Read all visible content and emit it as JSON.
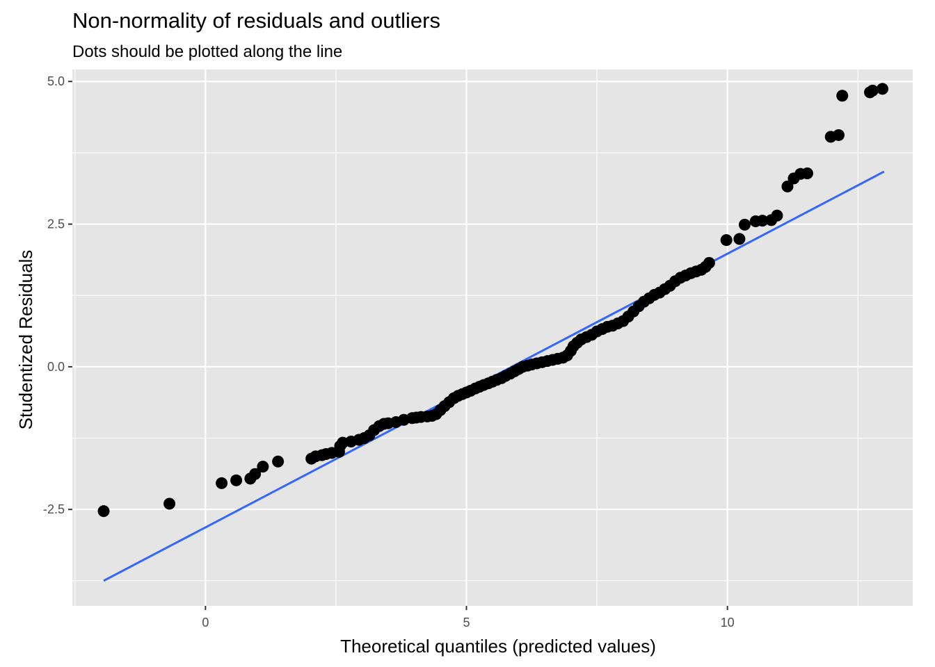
{
  "chart_data": {
    "type": "scatter",
    "title": "Non-normality of residuals and outliers",
    "subtitle": "Dots should be plotted along the line",
    "xlabel": "Theoretical quantiles (predicted values)",
    "ylabel": "Studentized Residuals",
    "xlim": [
      -2.55,
      13.55
    ],
    "ylim": [
      -4.19,
      5.21
    ],
    "x_ticks": [
      0,
      5,
      10
    ],
    "x_tick_labels": [
      "0",
      "5",
      "10"
    ],
    "y_ticks": [
      -2.5,
      0.0,
      2.5,
      5.0
    ],
    "y_tick_labels": [
      "-2.5",
      "0.0",
      "2.5",
      "5.0"
    ],
    "grid": true,
    "background": "#e5e5e5",
    "grid_color": "#ffffff",
    "point_color": "#000000",
    "line_color": "#3366ff",
    "reference_line": {
      "x": [
        -1.95,
        13.0
      ],
      "y": [
        -3.75,
        3.42
      ]
    },
    "points": {
      "x": [
        -1.95,
        -0.69,
        0.31,
        0.59,
        0.86,
        0.95,
        1.1,
        1.39,
        2.03,
        2.11,
        2.23,
        2.31,
        2.42,
        2.56,
        2.58,
        2.63,
        2.79,
        2.94,
        3.04,
        3.14,
        3.23,
        3.33,
        3.42,
        3.5,
        3.65,
        3.8,
        3.96,
        4.04,
        4.13,
        4.25,
        4.34,
        4.42,
        4.5,
        4.58,
        4.67,
        4.76,
        4.84,
        4.92,
        5.0,
        5.08,
        5.17,
        5.25,
        5.33,
        5.42,
        5.5,
        5.58,
        5.67,
        5.75,
        5.84,
        5.92,
        6.0,
        6.08,
        6.17,
        6.25,
        6.35,
        6.45,
        6.55,
        6.65,
        6.75,
        6.85,
        6.93,
        7.0,
        7.05,
        7.12,
        7.2,
        7.3,
        7.4,
        7.5,
        7.6,
        7.7,
        7.8,
        7.9,
        8.0,
        8.1,
        8.2,
        8.3,
        8.4,
        8.5,
        8.6,
        8.7,
        8.8,
        8.9,
        9.0,
        9.1,
        9.2,
        9.3,
        9.4,
        9.5,
        9.58,
        9.65,
        9.98,
        10.23,
        10.33,
        10.54,
        10.67,
        10.84,
        10.95,
        11.15,
        11.27,
        11.4,
        11.53,
        11.98,
        12.13,
        12.2,
        12.73,
        12.78,
        12.97
      ],
      "y": [
        -2.53,
        -2.4,
        -2.04,
        -1.99,
        -1.96,
        -1.88,
        -1.75,
        -1.66,
        -1.61,
        -1.57,
        -1.55,
        -1.53,
        -1.51,
        -1.49,
        -1.39,
        -1.33,
        -1.31,
        -1.28,
        -1.25,
        -1.2,
        -1.11,
        -1.04,
        -1.0,
        -0.99,
        -0.97,
        -0.93,
        -0.9,
        -0.89,
        -0.88,
        -0.87,
        -0.86,
        -0.83,
        -0.76,
        -0.69,
        -0.62,
        -0.55,
        -0.51,
        -0.48,
        -0.45,
        -0.42,
        -0.38,
        -0.35,
        -0.32,
        -0.29,
        -0.26,
        -0.23,
        -0.2,
        -0.16,
        -0.12,
        -0.08,
        -0.04,
        0.0,
        0.02,
        0.04,
        0.06,
        0.08,
        0.1,
        0.12,
        0.14,
        0.16,
        0.2,
        0.28,
        0.36,
        0.42,
        0.48,
        0.52,
        0.56,
        0.62,
        0.66,
        0.7,
        0.72,
        0.76,
        0.8,
        0.88,
        0.97,
        1.06,
        1.14,
        1.2,
        1.26,
        1.3,
        1.36,
        1.42,
        1.5,
        1.56,
        1.6,
        1.64,
        1.67,
        1.7,
        1.75,
        1.82,
        2.22,
        2.24,
        2.49,
        2.55,
        2.56,
        2.57,
        2.65,
        3.16,
        3.3,
        3.38,
        3.39,
        4.03,
        4.06,
        4.75,
        4.81,
        4.84,
        4.87
      ]
    }
  }
}
